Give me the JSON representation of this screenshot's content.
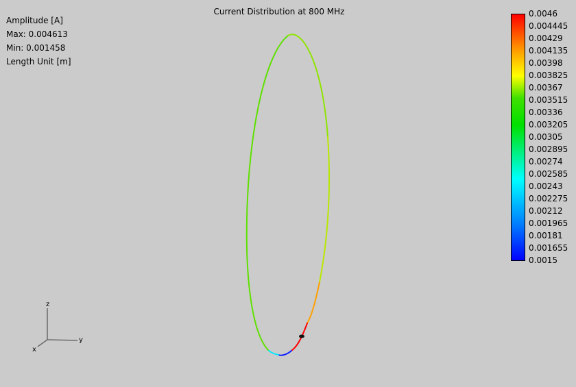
{
  "title": "Current Distribution at 800 MHz",
  "info": {
    "amplitude": "Amplitude [A]",
    "max": "Max: 0.004613",
    "min": "Min: 0.001458",
    "length_unit": "Length Unit [m]"
  },
  "colorbar": {
    "labels": [
      "0.0046",
      "0.004445",
      "0.00429",
      "0.004135",
      "0.00398",
      "0.003825",
      "0.00367",
      "0.003515",
      "0.00336",
      "0.003205",
      "0.00305",
      "0.002895",
      "0.00274",
      "0.002585",
      "0.00243",
      "0.002275",
      "0.00212",
      "0.001965",
      "0.00181",
      "0.001655",
      "0.0015"
    ]
  },
  "axes": {
    "z": "z",
    "y": "y",
    "x": "x"
  },
  "colors": {
    "background": "#cbcbcb",
    "loop_main": "#5ee000",
    "loop_upper": "#99e400",
    "hot_red": "#ff0000",
    "hot_orange": "#ffa000",
    "cold_blue": "#0010ff",
    "cyan": "#00e8ff"
  }
}
